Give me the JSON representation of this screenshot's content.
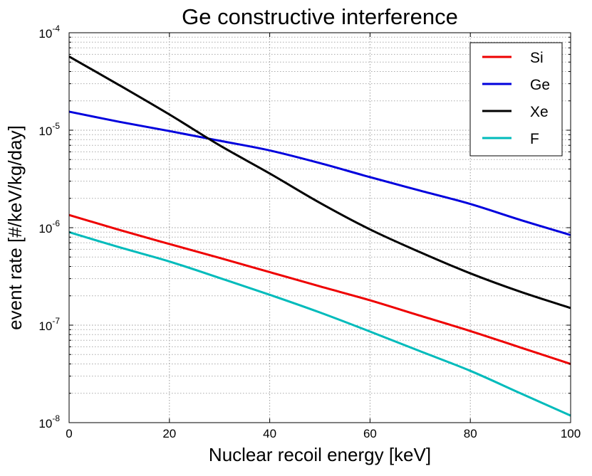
{
  "chart_data": {
    "type": "line",
    "title": "Ge constructive interference",
    "xlabel": "Nuclear recoil energy [keV]",
    "ylabel": "event rate [#/keV/kg/day]",
    "xlim": [
      0,
      100
    ],
    "ylim": [
      1e-08,
      0.0001
    ],
    "yscale": "log",
    "grid": true,
    "legend_position": "top-right",
    "x_ticks": [
      0,
      20,
      40,
      60,
      80,
      100
    ],
    "y_ticks": [
      {
        "value": 1e-08,
        "base": "10",
        "exp": "-8"
      },
      {
        "value": 1e-07,
        "base": "10",
        "exp": "-7"
      },
      {
        "value": 1e-06,
        "base": "10",
        "exp": "-6"
      },
      {
        "value": 1e-05,
        "base": "10",
        "exp": "-5"
      },
      {
        "value": 0.0001,
        "base": "10",
        "exp": "-4"
      }
    ],
    "x": [
      0,
      10,
      20,
      30,
      40,
      50,
      60,
      70,
      80,
      90,
      100
    ],
    "series": [
      {
        "name": "Si",
        "color": "#ee0000",
        "values": [
          1.35e-06,
          9.5e-07,
          6.8e-07,
          4.9e-07,
          3.5e-07,
          2.5e-07,
          1.8e-07,
          1.25e-07,
          8.7e-08,
          5.9e-08,
          4e-08
        ]
      },
      {
        "name": "Ge",
        "color": "#0000dd",
        "values": [
          1.55e-05,
          1.22e-05,
          9.8e-06,
          7.8e-06,
          6.2e-06,
          4.6e-06,
          3.3e-06,
          2.4e-06,
          1.75e-06,
          1.2e-06,
          8.4e-07
        ]
      },
      {
        "name": "Xe",
        "color": "#000000",
        "values": [
          5.7e-05,
          2.9e-05,
          1.45e-05,
          7e-06,
          3.6e-06,
          1.8e-06,
          9.6e-07,
          5.6e-07,
          3.4e-07,
          2.2e-07,
          1.5e-07
        ]
      },
      {
        "name": "F",
        "color": "#00bbbb",
        "values": [
          9e-07,
          6.3e-07,
          4.5e-07,
          3.05e-07,
          2.05e-07,
          1.35e-07,
          8.6e-08,
          5.4e-08,
          3.4e-08,
          2e-08,
          1.18e-08
        ]
      }
    ]
  }
}
